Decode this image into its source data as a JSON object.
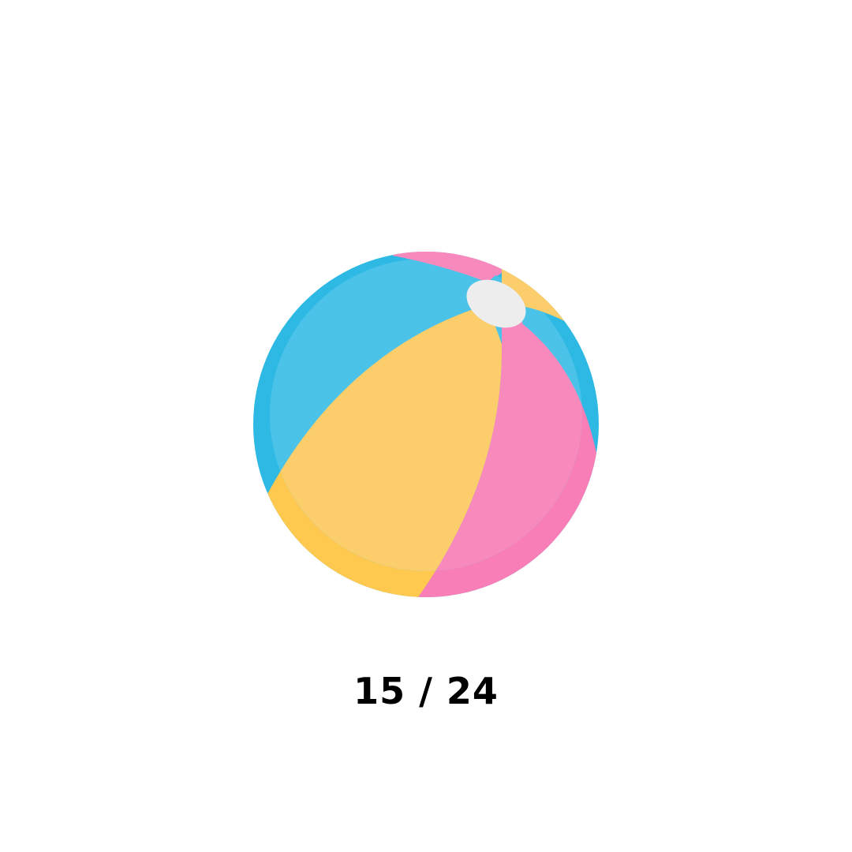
{
  "illustration": {
    "icon": "beach-ball-icon",
    "colors": {
      "blue_dark": "#2EB9E4",
      "blue_light": "#4BC3E8",
      "yellow_dark": "#FFC84E",
      "yellow_light": "#FBCD6B",
      "pink_dark": "#F97DB6",
      "pink_light": "#F889BD",
      "valve": "#EDEDED"
    }
  },
  "progress": {
    "current": 15,
    "total": 24,
    "label": "15 / 24"
  }
}
